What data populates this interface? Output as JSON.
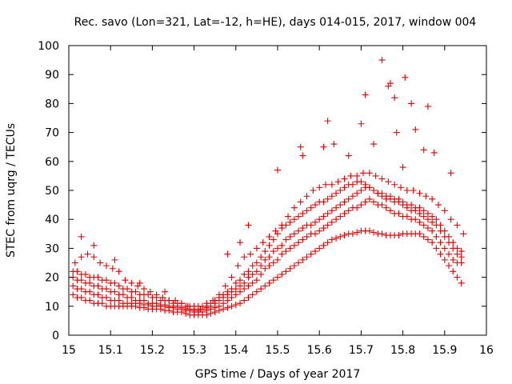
{
  "chart_data": {
    "type": "scatter",
    "title": "Rec. savo (Lon=321, Lat=-12, h=HE), days 014-015, 2017, window 004",
    "xlabel": "GPS time / Days of year 2017",
    "ylabel": "STEC from uqrg / TECUs",
    "xlim": [
      15,
      16
    ],
    "ylim": [
      0,
      100
    ],
    "xticks": [
      "15",
      "15.1",
      "15.2",
      "15.3",
      "15.4",
      "15.5",
      "15.6",
      "15.7",
      "15.8",
      "15.9",
      "16"
    ],
    "yticks": [
      "0",
      "10",
      "20",
      "30",
      "40",
      "50",
      "60",
      "70",
      "80",
      "90",
      "100"
    ],
    "marker": "+",
    "marker_color": "#e00000",
    "grid": false,
    "series": [
      {
        "x": [
          15.01,
          15.02,
          15.03,
          15.04,
          15.05,
          15.06,
          15.07,
          15.08,
          15.09,
          15.1,
          15.11,
          15.12,
          15.13,
          15.14,
          15.15,
          15.16,
          15.17,
          15.18,
          15.19,
          15.2,
          15.21,
          15.22,
          15.23,
          15.24,
          15.25,
          15.26,
          15.27,
          15.28,
          15.29,
          15.3,
          15.31,
          15.32,
          15.33,
          15.34,
          15.35,
          15.36,
          15.37,
          15.38,
          15.39,
          15.4,
          15.41,
          15.42,
          15.43,
          15.44,
          15.45,
          15.46,
          15.47,
          15.48,
          15.49,
          15.5,
          15.51,
          15.52,
          15.53,
          15.54,
          15.55,
          15.56,
          15.57,
          15.58,
          15.59,
          15.6,
          15.61,
          15.62,
          15.63,
          15.64,
          15.65,
          15.66,
          15.67,
          15.68,
          15.69,
          15.7,
          15.71,
          15.72,
          15.73,
          15.74,
          15.75,
          15.76,
          15.77,
          15.78,
          15.79,
          15.8,
          15.81,
          15.82,
          15.83,
          15.84,
          15.85,
          15.86,
          15.87,
          15.88,
          15.89,
          15.9,
          15.91,
          15.92,
          15.93,
          15.94
        ],
        "y": [
          14,
          13,
          13,
          12,
          12,
          11,
          11,
          11,
          10,
          10,
          10,
          10,
          10,
          10,
          10,
          10,
          9.5,
          9.5,
          9,
          9,
          9,
          9,
          8.5,
          8.5,
          8,
          8,
          8,
          7.5,
          7,
          7,
          7,
          7,
          7,
          7.5,
          8,
          8.5,
          9,
          9.5,
          10,
          10.5,
          11,
          12,
          13,
          14,
          15,
          16,
          17,
          18,
          19,
          20,
          21,
          22,
          23,
          24,
          25,
          26,
          27,
          28,
          29,
          30,
          31,
          32,
          33,
          33.5,
          34,
          34.5,
          35,
          35,
          35.5,
          36,
          36,
          36,
          35.5,
          35,
          35,
          34.5,
          34.5,
          34.5,
          34.5,
          35,
          35,
          35,
          35,
          35,
          34,
          33,
          32,
          30,
          28,
          26,
          24,
          22,
          20,
          18
        ]
      },
      {
        "x": [
          15.01,
          15.02,
          15.03,
          15.04,
          15.05,
          15.06,
          15.07,
          15.08,
          15.09,
          15.1,
          15.11,
          15.12,
          15.13,
          15.14,
          15.15,
          15.16,
          15.17,
          15.18,
          15.19,
          15.2,
          15.21,
          15.22,
          15.23,
          15.24,
          15.25,
          15.26,
          15.27,
          15.28,
          15.29,
          15.3,
          15.31,
          15.32,
          15.33,
          15.34,
          15.35,
          15.36,
          15.37,
          15.38,
          15.39,
          15.4,
          15.41,
          15.42,
          15.43,
          15.44,
          15.45,
          15.46,
          15.47,
          15.48,
          15.49,
          15.5,
          15.51,
          15.52,
          15.53,
          15.54,
          15.55,
          15.56,
          15.57,
          15.58,
          15.59,
          15.6,
          15.61,
          15.62,
          15.63,
          15.64,
          15.65,
          15.66,
          15.67,
          15.68,
          15.69,
          15.7,
          15.71,
          15.72,
          15.73,
          15.74,
          15.75,
          15.76,
          15.77,
          15.78,
          15.79,
          15.8,
          15.81,
          15.82,
          15.83,
          15.84,
          15.85,
          15.86,
          15.87,
          15.88,
          15.89,
          15.9,
          15.91,
          15.92,
          15.93,
          15.94
        ],
        "y": [
          17,
          16,
          16,
          15,
          15,
          14,
          14,
          13,
          13,
          12,
          12,
          12,
          11,
          11,
          11,
          11,
          11,
          10.5,
          10.5,
          10,
          10,
          10,
          10,
          9.5,
          9.5,
          9,
          9,
          8.5,
          8.5,
          8,
          8,
          8,
          8.5,
          9,
          9.5,
          10,
          11,
          12,
          13,
          14,
          15,
          16,
          17,
          18,
          19,
          21,
          23,
          24,
          25,
          26,
          28,
          29,
          30,
          31,
          32,
          33,
          34,
          35,
          35,
          36,
          37,
          38,
          39,
          40,
          41,
          42,
          43,
          44,
          44,
          45,
          46,
          47,
          46,
          45,
          45,
          44,
          43,
          42,
          42,
          41,
          41,
          40,
          40,
          39,
          38,
          37,
          36,
          34,
          32,
          30,
          28,
          26,
          25,
          25
        ]
      },
      {
        "x": [
          15.01,
          15.02,
          15.03,
          15.04,
          15.05,
          15.06,
          15.07,
          15.08,
          15.09,
          15.1,
          15.11,
          15.12,
          15.13,
          15.14,
          15.15,
          15.16,
          15.17,
          15.18,
          15.19,
          15.2,
          15.21,
          15.22,
          15.23,
          15.24,
          15.25,
          15.26,
          15.27,
          15.28,
          15.29,
          15.3,
          15.31,
          15.32,
          15.33,
          15.34,
          15.35,
          15.36,
          15.37,
          15.38,
          15.39,
          15.4,
          15.41,
          15.42,
          15.43,
          15.44,
          15.45,
          15.46,
          15.47,
          15.48,
          15.49,
          15.5,
          15.51,
          15.52,
          15.53,
          15.54,
          15.55,
          15.56,
          15.57,
          15.58,
          15.59,
          15.6,
          15.61,
          15.62,
          15.63,
          15.64,
          15.65,
          15.66,
          15.67,
          15.68,
          15.69,
          15.7,
          15.71,
          15.72,
          15.73,
          15.74,
          15.75,
          15.76,
          15.77,
          15.78,
          15.79,
          15.8,
          15.81,
          15.82,
          15.83,
          15.84,
          15.85,
          15.86,
          15.87,
          15.88,
          15.89,
          15.9,
          15.91,
          15.92,
          15.93,
          15.94
        ],
        "y": [
          20,
          19,
          19,
          18,
          18,
          17,
          17,
          16,
          16,
          15,
          15,
          14,
          14,
          13,
          13,
          12,
          12,
          12,
          11,
          11,
          11,
          10.5,
          10.5,
          10,
          10,
          10,
          9.5,
          9,
          9,
          8.5,
          8.5,
          9,
          9.5,
          10,
          11,
          12,
          13,
          14,
          15,
          16,
          17,
          18,
          20,
          21,
          22,
          24,
          26,
          27,
          29,
          30,
          31,
          33,
          34,
          35,
          36,
          37,
          38,
          38,
          39,
          40,
          41,
          42,
          43,
          44,
          45,
          46,
          47,
          48,
          49,
          50,
          51,
          51,
          50,
          49,
          48,
          47,
          47,
          46,
          46,
          45,
          44,
          43,
          43,
          42,
          41,
          40,
          39,
          38,
          36,
          34,
          32,
          30,
          28,
          27
        ]
      },
      {
        "x": [
          15.01,
          15.02,
          15.03,
          15.04,
          15.05,
          15.06,
          15.07,
          15.08,
          15.09,
          15.1,
          15.11,
          15.12,
          15.13,
          15.14,
          15.15,
          15.16,
          15.17,
          15.18,
          15.19,
          15.2,
          15.21,
          15.22,
          15.23,
          15.24,
          15.25,
          15.26,
          15.27,
          15.28,
          15.29,
          15.3,
          15.31,
          15.32,
          15.33,
          15.34,
          15.35,
          15.36,
          15.37,
          15.38,
          15.39,
          15.4,
          15.41,
          15.42,
          15.43,
          15.44,
          15.45,
          15.46,
          15.47,
          15.48,
          15.49,
          15.5,
          15.51,
          15.52,
          15.53,
          15.54,
          15.55,
          15.56,
          15.57,
          15.58,
          15.59,
          15.6,
          15.61,
          15.62,
          15.63,
          15.64,
          15.65,
          15.66,
          15.67,
          15.68,
          15.69,
          15.7,
          15.71,
          15.72,
          15.73,
          15.74,
          15.75,
          15.76,
          15.77,
          15.78,
          15.79,
          15.8,
          15.81,
          15.82,
          15.83,
          15.84,
          15.85,
          15.86,
          15.87,
          15.88,
          15.89,
          15.9,
          15.91,
          15.92,
          15.93,
          15.94
        ],
        "y": [
          22,
          22,
          21,
          21,
          20,
          20,
          20,
          19,
          19,
          18,
          18,
          17,
          16,
          16,
          15,
          15,
          14,
          14,
          14,
          13,
          13,
          12,
          12,
          12,
          11,
          11,
          11,
          10,
          10,
          10,
          10,
          10,
          11,
          11,
          12,
          13,
          14,
          15,
          16,
          18,
          19,
          21,
          22,
          24,
          25,
          27,
          29,
          31,
          33,
          35,
          37,
          38,
          39,
          40,
          41,
          42,
          43,
          44,
          45,
          46,
          46,
          47,
          48,
          49,
          50,
          51,
          52,
          52,
          53,
          53,
          52,
          51,
          50,
          49,
          49,
          48,
          48,
          47,
          47,
          46,
          45,
          45,
          44,
          44,
          43,
          42,
          41,
          40,
          38,
          36,
          34,
          32,
          30,
          29
        ]
      },
      {
        "x": [
          15.015,
          15.03,
          15.045,
          15.06,
          15.075,
          15.09,
          15.105,
          15.12,
          15.135,
          15.15,
          15.165,
          15.18,
          15.195,
          15.21,
          15.225,
          15.24,
          15.255,
          15.27,
          15.285,
          15.3,
          15.315,
          15.33,
          15.345,
          15.36,
          15.375,
          15.39,
          15.405,
          15.42,
          15.435,
          15.45,
          15.465,
          15.48,
          15.495,
          15.51,
          15.525,
          15.54,
          15.555,
          15.57,
          15.585,
          15.6,
          15.615,
          15.63,
          15.645,
          15.66,
          15.675,
          15.69,
          15.705,
          15.72,
          15.735,
          15.75,
          15.765,
          15.78,
          15.795,
          15.81,
          15.825,
          15.84,
          15.855,
          15.87,
          15.885,
          15.9,
          15.915,
          15.93,
          15.945
        ],
        "y": [
          25,
          27,
          28,
          27,
          25,
          24,
          23,
          22,
          19,
          18,
          17,
          16,
          15,
          14,
          13,
          12,
          12,
          11,
          10,
          9,
          9,
          10,
          12,
          14,
          17,
          20,
          24,
          27,
          28,
          30,
          32,
          34,
          36,
          38,
          41,
          44,
          46,
          48,
          50,
          51,
          52,
          52,
          53,
          54,
          55,
          55,
          56,
          56,
          55,
          54,
          53,
          52,
          51,
          50,
          50,
          49,
          48,
          47,
          45,
          43,
          40,
          38,
          35
        ]
      },
      {
        "x": [
          15.03,
          15.06,
          15.11,
          15.17,
          15.23,
          15.38,
          15.41,
          15.43,
          15.5,
          15.555,
          15.56,
          15.61,
          15.62,
          15.635,
          15.67,
          15.7,
          15.71,
          15.73,
          15.75,
          15.765,
          15.77,
          15.78,
          15.785,
          15.8,
          15.805,
          15.82,
          15.83,
          15.85,
          15.86,
          15.875,
          15.915
        ],
        "y": [
          34,
          31,
          26,
          18,
          15,
          28,
          32,
          38,
          57,
          65,
          62,
          65,
          74,
          66,
          62,
          73,
          83,
          66,
          95,
          86,
          87,
          82,
          70,
          58,
          89,
          80,
          71,
          64,
          79,
          63,
          56
        ]
      }
    ]
  }
}
